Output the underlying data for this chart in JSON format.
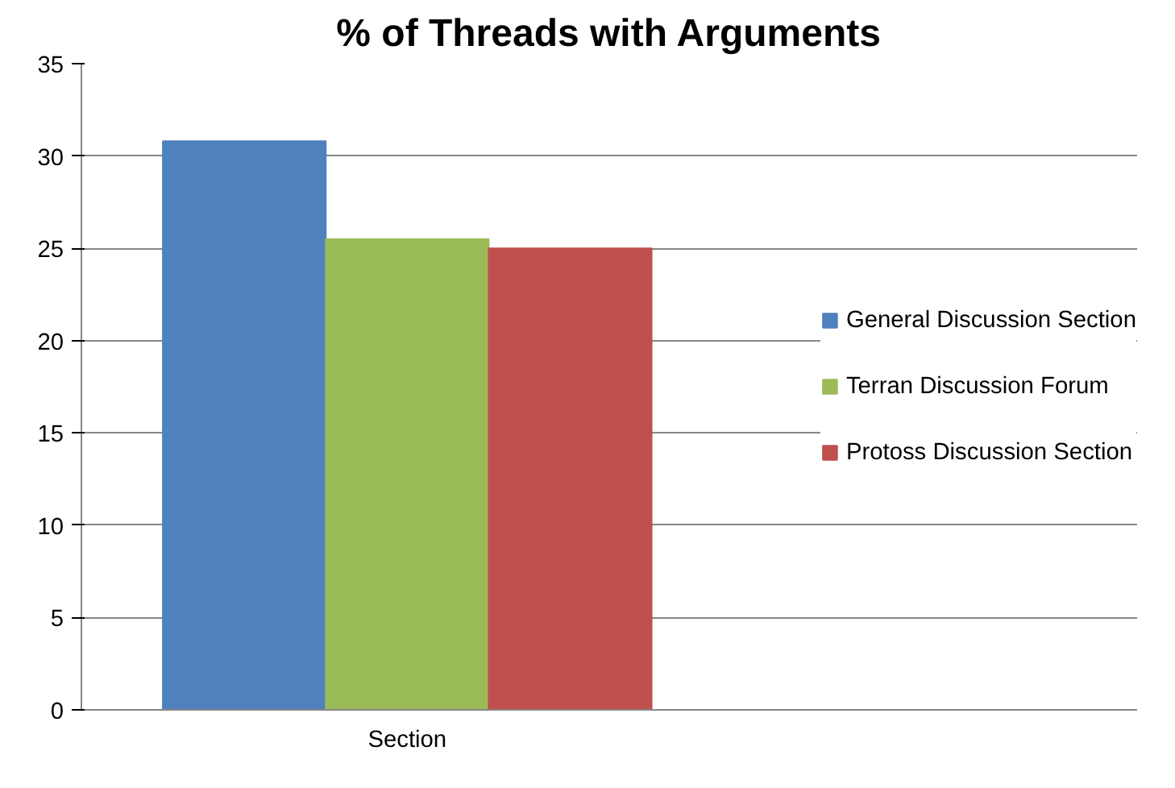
{
  "chart_data": {
    "type": "bar",
    "title": "% of Threads with Arguments",
    "categories": [
      "Section"
    ],
    "series": [
      {
        "name": "General Discussion Section",
        "color": "#4f81bd",
        "values": [
          30.8
        ]
      },
      {
        "name": "Terran Discussion Forum",
        "color": "#9bbb59",
        "values": [
          25.5
        ]
      },
      {
        "name": "Protoss Discussion Section",
        "color": "#c0504d",
        "values": [
          25.0
        ]
      }
    ],
    "ylim": [
      0,
      35
    ],
    "yticks": [
      0,
      5,
      10,
      15,
      20,
      25,
      30,
      35
    ],
    "grid": "y",
    "legend": "right"
  }
}
